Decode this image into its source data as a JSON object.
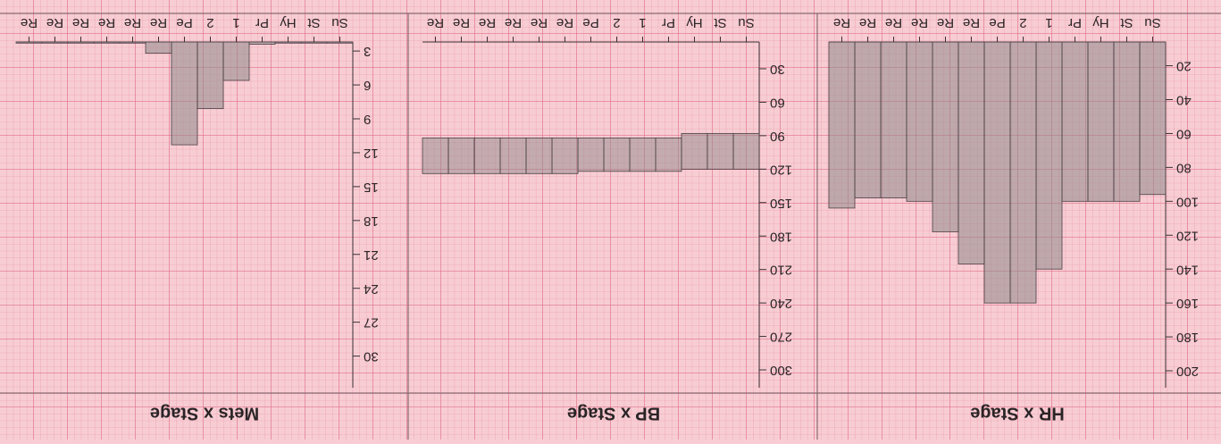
{
  "chart_data": [
    {
      "type": "bar",
      "title": "HR x Stage",
      "categories": [
        "Su",
        "St",
        "Hy",
        "Pr",
        "1",
        "2",
        "Pe",
        "Re",
        "Re",
        "Re",
        "Re",
        "Re",
        "Re"
      ],
      "values": [
        96,
        100,
        100,
        100,
        140,
        160,
        160,
        137,
        118,
        100,
        98,
        98,
        104
      ],
      "ylim": [
        6,
        210
      ],
      "yticks": [
        20,
        40,
        60,
        80,
        100,
        120,
        140,
        160,
        180,
        200
      ],
      "color": "#8f8a8c"
    },
    {
      "type": "floating_bar",
      "title": "BP x Stage",
      "categories": [
        "Su",
        "St",
        "Hy",
        "Pr",
        "1",
        "2",
        "Pe",
        "Re",
        "Re",
        "Re",
        "Re",
        "Re",
        "Re"
      ],
      "ranges": [
        [
          88,
          120
        ],
        [
          88,
          120
        ],
        [
          88,
          120
        ],
        [
          92,
          122
        ],
        [
          92,
          122
        ],
        [
          92,
          122
        ],
        [
          92,
          122
        ],
        [
          92,
          124
        ],
        [
          92,
          124
        ],
        [
          92,
          124
        ],
        [
          92,
          124
        ],
        [
          92,
          124
        ],
        [
          92,
          124
        ]
      ],
      "ylim": [
        6,
        316
      ],
      "yticks": [
        30,
        60,
        90,
        120,
        150,
        180,
        210,
        240,
        270,
        300
      ],
      "color": "#8f8a8c"
    },
    {
      "type": "bar",
      "title": "Mets x Stage",
      "categories": [
        "Su",
        "St",
        "Hy",
        "Pr",
        "1",
        "2",
        "Pe",
        "Re",
        "Re",
        "Re",
        "Re",
        "Re",
        "Re"
      ],
      "values": [
        2.3,
        2.3,
        2.3,
        2.4,
        5.6,
        8.1,
        11.3,
        3.2,
        2.3,
        2.3,
        2.3,
        2.3,
        2.3
      ],
      "ylim": [
        2.2,
        32.8
      ],
      "yticks": [
        3,
        6,
        9,
        12,
        15,
        18,
        21,
        24,
        27,
        30
      ],
      "color": "#8f8a8c"
    }
  ]
}
